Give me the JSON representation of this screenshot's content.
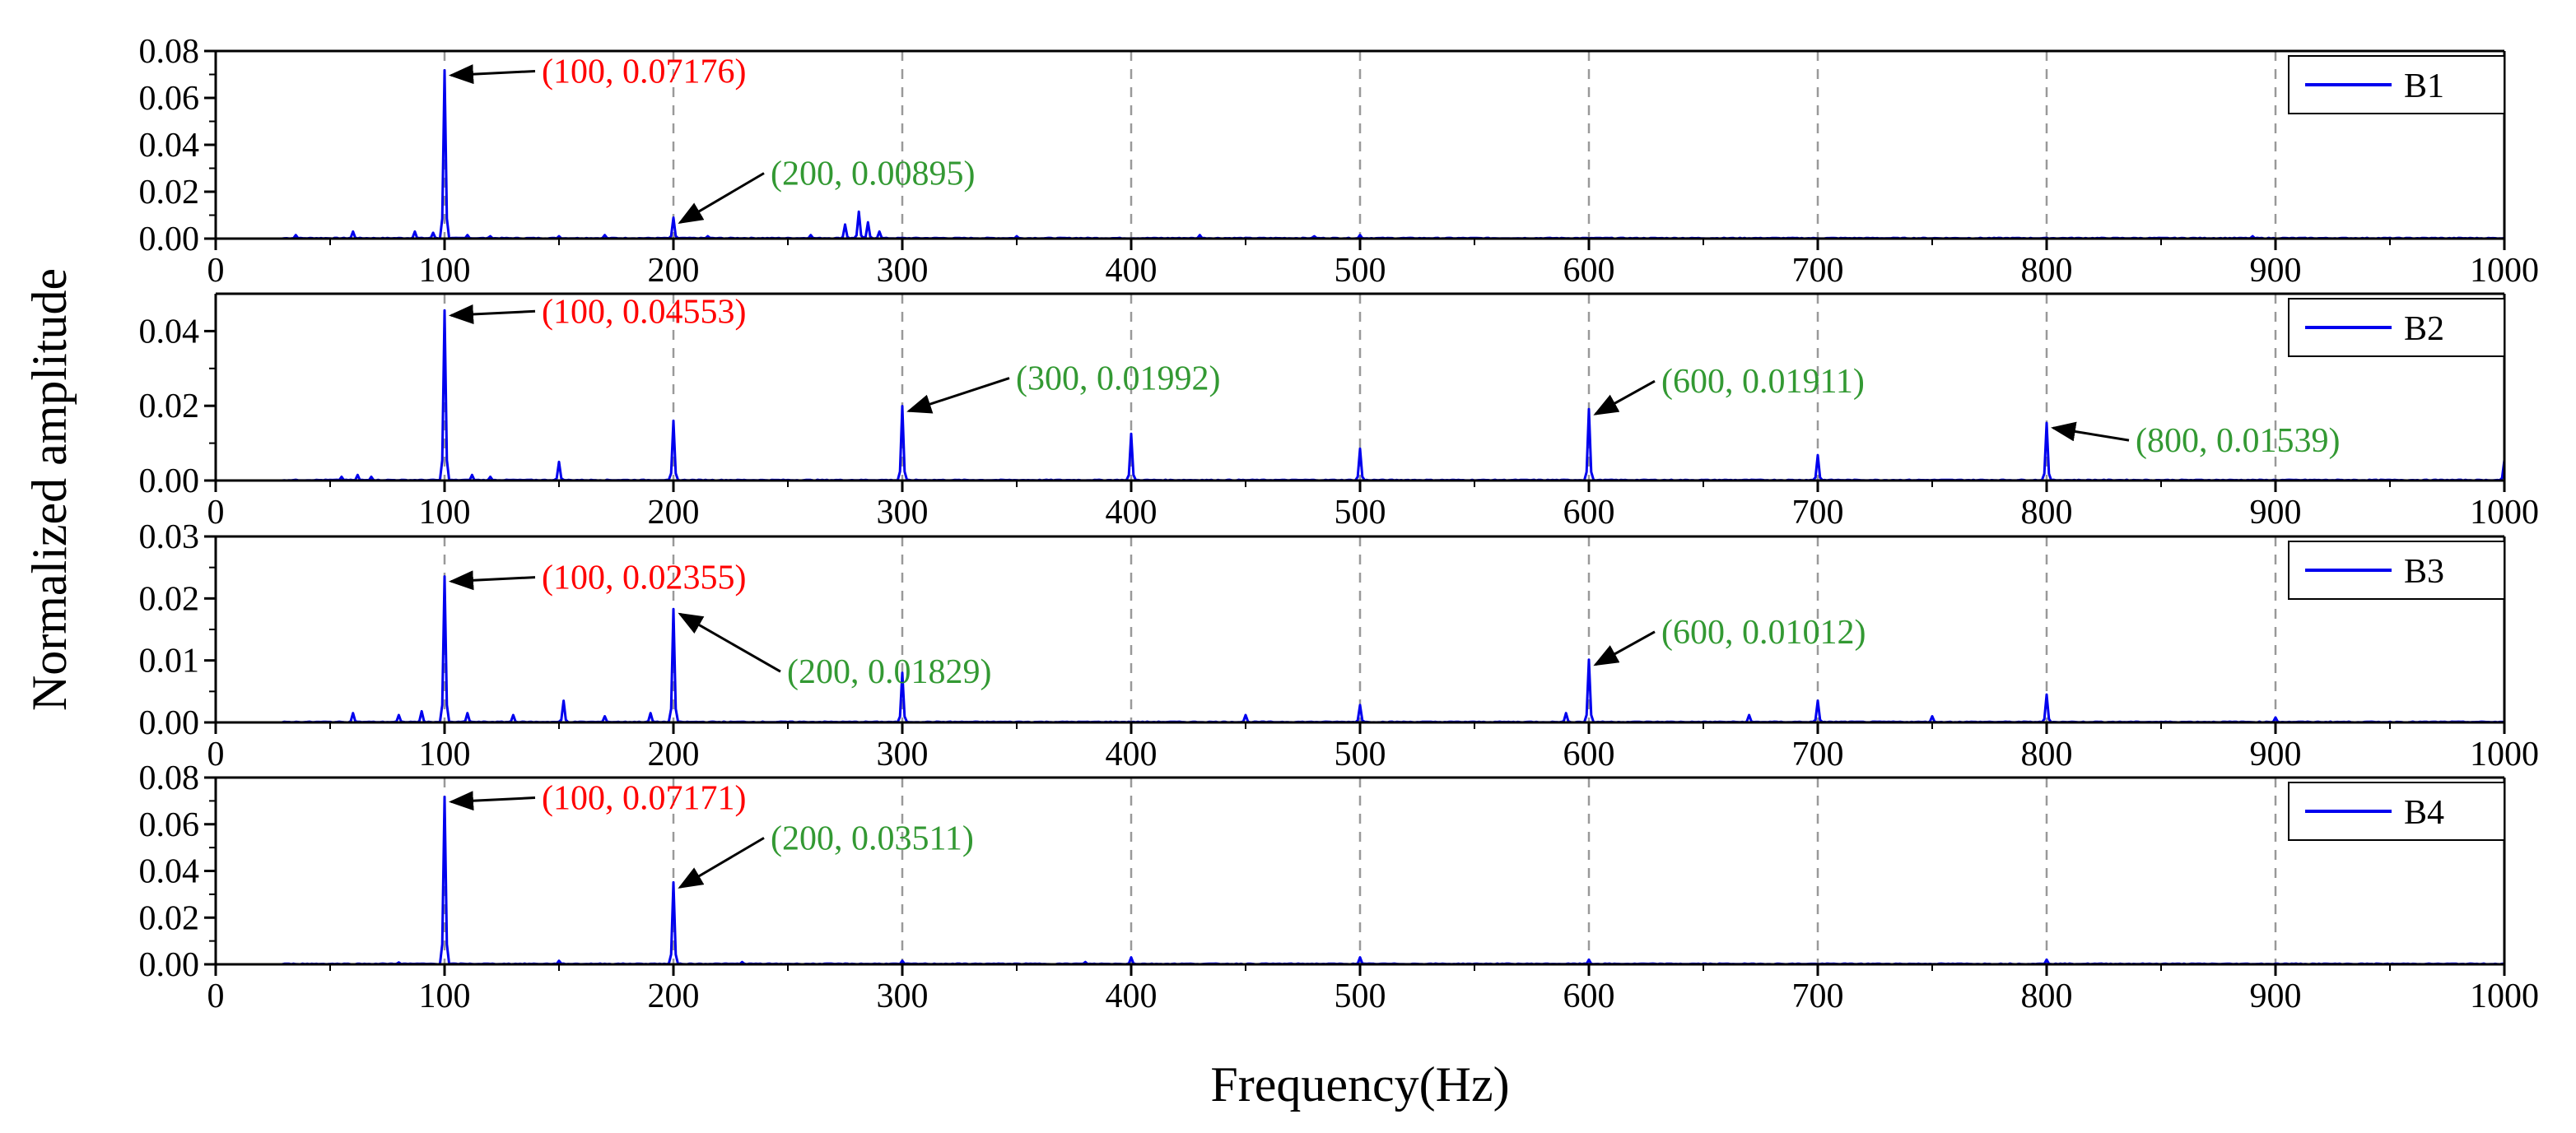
{
  "chart_data": {
    "type": "line",
    "xlabel": "Frequency(Hz)",
    "ylabel": "Normalized amplitude",
    "xlim": [
      0,
      1000
    ],
    "xticks": [
      0,
      100,
      200,
      300,
      400,
      500,
      600,
      700,
      800,
      900,
      1000
    ],
    "grid_x": [
      100,
      200,
      300,
      400,
      500,
      600,
      700,
      800,
      900
    ],
    "series_color": "#0000ee",
    "panels": [
      {
        "name": "B1",
        "ylim": [
          0,
          0.08
        ],
        "yticks": [
          0,
          0.02,
          0.04,
          0.06,
          0.08
        ],
        "ytick_labels": [
          "0.00",
          "0.02",
          "0.04",
          "0.06",
          "0.08"
        ],
        "peaks": [
          [
            35,
            0.0015
          ],
          [
            60,
            0.003
          ],
          [
            87,
            0.003
          ],
          [
            95,
            0.0025
          ],
          [
            100,
            0.07176
          ],
          [
            110,
            0.0015
          ],
          [
            120,
            0.001
          ],
          [
            150,
            0.001
          ],
          [
            170,
            0.0015
          ],
          [
            200,
            0.00895
          ],
          [
            215,
            0.001
          ],
          [
            260,
            0.0015
          ],
          [
            275,
            0.006
          ],
          [
            281,
            0.0115
          ],
          [
            285,
            0.007
          ],
          [
            290,
            0.003
          ],
          [
            350,
            0.001
          ],
          [
            430,
            0.0015
          ],
          [
            480,
            0.001
          ],
          [
            500,
            0.0015
          ],
          [
            890,
            0.001
          ]
        ],
        "annotations": [
          {
            "x": 100,
            "y": 0.07176,
            "text": "(100, 0.07176)",
            "color": "#ff0000"
          },
          {
            "x": 200,
            "y": 0.00895,
            "text": "(200, 0.00895)",
            "color": "#339933"
          }
        ]
      },
      {
        "name": "B2",
        "ylim": [
          0,
          0.05
        ],
        "yticks": [
          0,
          0.02,
          0.04
        ],
        "ytick_labels": [
          "0.00",
          "0.02",
          "0.04"
        ],
        "peaks": [
          [
            55,
            0.001
          ],
          [
            62,
            0.0015
          ],
          [
            68,
            0.001
          ],
          [
            100,
            0.04553
          ],
          [
            112,
            0.0015
          ],
          [
            120,
            0.001
          ],
          [
            150,
            0.005
          ],
          [
            200,
            0.016
          ],
          [
            300,
            0.01992
          ],
          [
            400,
            0.0125
          ],
          [
            500,
            0.0085
          ],
          [
            600,
            0.01911
          ],
          [
            700,
            0.0068
          ],
          [
            800,
            0.01539
          ],
          [
            1000,
            0.0055
          ]
        ],
        "annotations": [
          {
            "x": 100,
            "y": 0.04553,
            "text": "(100, 0.04553)",
            "color": "#ff0000"
          },
          {
            "x": 300,
            "y": 0.01992,
            "text": "(300, 0.01992)",
            "color": "#339933"
          },
          {
            "x": 600,
            "y": 0.01911,
            "text": "(600, 0.01911)",
            "color": "#339933"
          },
          {
            "x": 800,
            "y": 0.01539,
            "text": "(800, 0.01539)",
            "color": "#339933"
          }
        ]
      },
      {
        "name": "B3",
        "ylim": [
          0,
          0.03
        ],
        "yticks": [
          0,
          0.01,
          0.02,
          0.03
        ],
        "ytick_labels": [
          "0.00",
          "0.01",
          "0.02",
          "0.03"
        ],
        "peaks": [
          [
            60,
            0.0015
          ],
          [
            80,
            0.0012
          ],
          [
            90,
            0.0018
          ],
          [
            100,
            0.02355
          ],
          [
            110,
            0.0015
          ],
          [
            130,
            0.0012
          ],
          [
            152,
            0.0035
          ],
          [
            170,
            0.001
          ],
          [
            190,
            0.0015
          ],
          [
            200,
            0.01829
          ],
          [
            300,
            0.008
          ],
          [
            450,
            0.0012
          ],
          [
            500,
            0.0028
          ],
          [
            590,
            0.0015
          ],
          [
            600,
            0.01012
          ],
          [
            670,
            0.0012
          ],
          [
            700,
            0.0035
          ],
          [
            750,
            0.001
          ],
          [
            800,
            0.0045
          ],
          [
            900,
            0.0008
          ]
        ],
        "annotations": [
          {
            "x": 100,
            "y": 0.02355,
            "text": "(100, 0.02355)",
            "color": "#ff0000"
          },
          {
            "x": 200,
            "y": 0.01829,
            "text": "(200, 0.01829)",
            "color": "#339933"
          },
          {
            "x": 600,
            "y": 0.01012,
            "text": "(600, 0.01012)",
            "color": "#339933"
          }
        ]
      },
      {
        "name": "B4",
        "ylim": [
          0,
          0.08
        ],
        "yticks": [
          0,
          0.02,
          0.04,
          0.06,
          0.08
        ],
        "ytick_labels": [
          "0.00",
          "0.02",
          "0.04",
          "0.06",
          "0.08"
        ],
        "peaks": [
          [
            80,
            0.0008
          ],
          [
            100,
            0.07171
          ],
          [
            150,
            0.0015
          ],
          [
            200,
            0.03511
          ],
          [
            230,
            0.001
          ],
          [
            300,
            0.0015
          ],
          [
            380,
            0.001
          ],
          [
            400,
            0.003
          ],
          [
            500,
            0.003
          ],
          [
            600,
            0.002
          ],
          [
            800,
            0.002
          ]
        ],
        "annotations": [
          {
            "x": 100,
            "y": 0.07171,
            "text": "(100, 0.07171)",
            "color": "#ff0000"
          },
          {
            "x": 200,
            "y": 0.03511,
            "text": "(200, 0.03511)",
            "color": "#339933"
          }
        ]
      }
    ]
  }
}
